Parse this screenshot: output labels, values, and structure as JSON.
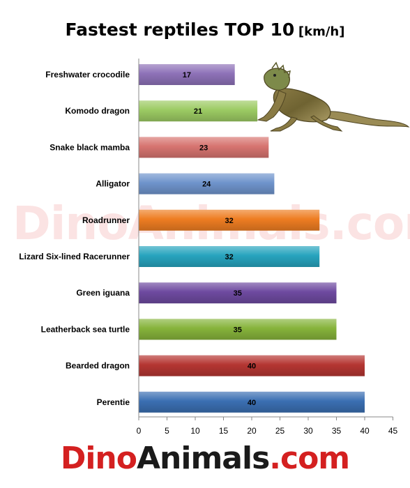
{
  "title": "Fastest reptiles TOP 10",
  "unit": "[km/h]",
  "watermark": "DinoAnimals.com",
  "logo": {
    "part1": "Dino",
    "part2": "Animals",
    "part3": ".com"
  },
  "chart_data": {
    "type": "bar",
    "orientation": "horizontal",
    "title": "Fastest reptiles TOP 10",
    "unit": "[km/h]",
    "categories": [
      "Freshwater  crocodile",
      "Komodo dragon",
      "Snake black mamba",
      "Alligator",
      "Roadrunner",
      "Lizard Six-lined Racerunner",
      "Green iguana",
      "Leatherback  sea  turtle",
      "Bearded dragon",
      "Perentie"
    ],
    "values": [
      17,
      21,
      23,
      24,
      32,
      32,
      35,
      35,
      40,
      40
    ],
    "colors": [
      "#8e72b8",
      "#9ccb63",
      "#d77470",
      "#6f94cc",
      "#ee7d22",
      "#27a4be",
      "#6e4aa0",
      "#86b33b",
      "#b53632",
      "#3b6fb2"
    ],
    "xlim": [
      0,
      45
    ],
    "xticks": [
      0,
      5,
      10,
      15,
      20,
      25,
      30,
      35,
      40,
      45
    ],
    "grid": false,
    "data_labels": true
  }
}
